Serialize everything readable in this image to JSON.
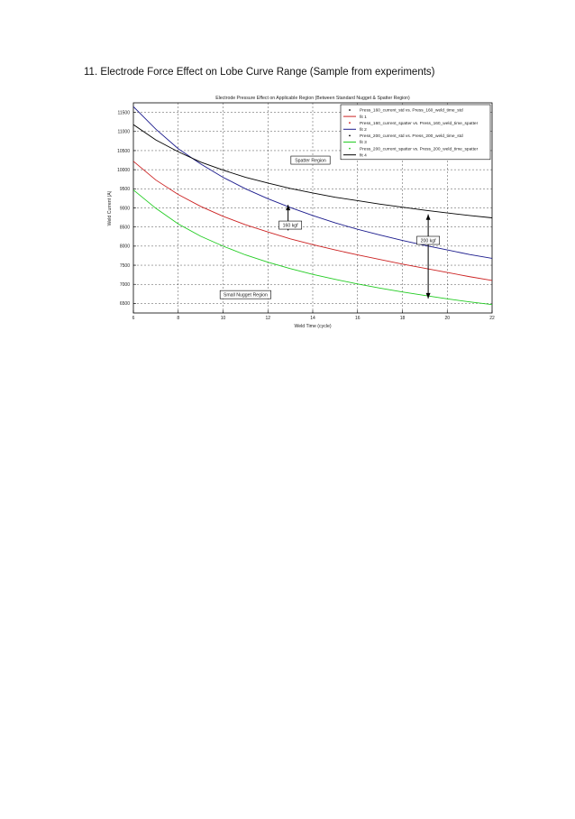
{
  "document": {
    "heading": "11. Electrode Force Effect on Lobe Curve Range (Sample from experiments)"
  },
  "chart_data": {
    "type": "line",
    "title": "Electrode Pressure Effect on Applicable Region (Between Standard Nugget & Spatter Region)",
    "xlabel": "Weld Time (cycle)",
    "ylabel": "Weld Current (A)",
    "xlim": [
      6,
      22
    ],
    "ylim": [
      6250,
      11750
    ],
    "xticks": [
      6,
      8,
      10,
      12,
      14,
      16,
      18,
      20,
      22
    ],
    "yticks": [
      6500,
      7000,
      7500,
      8000,
      8500,
      9000,
      9500,
      10000,
      10500,
      11000,
      11500
    ],
    "grid": true,
    "legend_position": "top-right",
    "legend": [
      {
        "label": "Press_160_current_std vs. Press_160_weld_time_std",
        "kind": "marker",
        "color": "#000000"
      },
      {
        "label": "fit 1",
        "kind": "line",
        "color": "#cc2222"
      },
      {
        "label": "Press_160_current_spatter vs. Press_160_weld_time_spatter",
        "kind": "marker",
        "color": "#cc2222"
      },
      {
        "label": "fit 2",
        "kind": "line",
        "color": "#1a1a8c"
      },
      {
        "label": "Press_200_current_std vs. Press_200_weld_time_std",
        "kind": "marker",
        "color": "#000000"
      },
      {
        "label": "fit 3",
        "kind": "line",
        "color": "#22cc22"
      },
      {
        "label": "Press_200_current_spatter vs. Press_200_weld_time_spatter",
        "kind": "marker",
        "color": "#22cc22"
      },
      {
        "label": "fit 4",
        "kind": "line",
        "color": "#000000"
      }
    ],
    "series": [
      {
        "name": "fit 1",
        "color": "#cc2222",
        "x": [
          6,
          7,
          8,
          9,
          10,
          11,
          12,
          13,
          14,
          15,
          16,
          17,
          18,
          19,
          20,
          21,
          22
        ],
        "y": [
          10220,
          9730,
          9350,
          9040,
          8780,
          8560,
          8370,
          8190,
          8040,
          7900,
          7770,
          7650,
          7530,
          7420,
          7310,
          7200,
          7100
        ]
      },
      {
        "name": "fit 2",
        "color": "#1a1a8c",
        "x": [
          6,
          7,
          8,
          9,
          10,
          11,
          12,
          13,
          14,
          15,
          16,
          17,
          18,
          19,
          20,
          21,
          22
        ],
        "y": [
          11650,
          11060,
          10550,
          10150,
          9800,
          9500,
          9240,
          9010,
          8800,
          8610,
          8440,
          8290,
          8150,
          8020,
          7900,
          7780,
          7680
        ]
      },
      {
        "name": "fit 3",
        "color": "#22cc22",
        "x": [
          6,
          7,
          8,
          9,
          10,
          11,
          12,
          13,
          14,
          15,
          16,
          17,
          18,
          19,
          20,
          21,
          22
        ],
        "y": [
          9470,
          8990,
          8580,
          8260,
          8000,
          7770,
          7580,
          7410,
          7260,
          7130,
          7010,
          6900,
          6800,
          6710,
          6620,
          6540,
          6470
        ]
      },
      {
        "name": "fit 4",
        "color": "#000000",
        "x": [
          6,
          7,
          8,
          9,
          10,
          11,
          12,
          13,
          14,
          15,
          16,
          17,
          18,
          19,
          20,
          21,
          22
        ],
        "y": [
          11180,
          10780,
          10470,
          10200,
          9990,
          9800,
          9650,
          9510,
          9390,
          9280,
          9190,
          9100,
          9020,
          8940,
          8870,
          8800,
          8740
        ]
      }
    ],
    "annotations": [
      {
        "text": "Spatter Region",
        "x": 13.9,
        "y": 10250
      },
      {
        "text": "Small Nugget Region",
        "x": 11.0,
        "y": 6730
      },
      {
        "text": "160 kgf",
        "x": 13.0,
        "y": 8550
      },
      {
        "text": "200 kgf",
        "x": 19.15,
        "y": 8150
      }
    ],
    "arrows": [
      {
        "x": 12.9,
        "y_from": 8410,
        "y_to": 9080
      },
      {
        "x": 19.15,
        "y_from": 6630,
        "y_to": 8830
      }
    ]
  }
}
